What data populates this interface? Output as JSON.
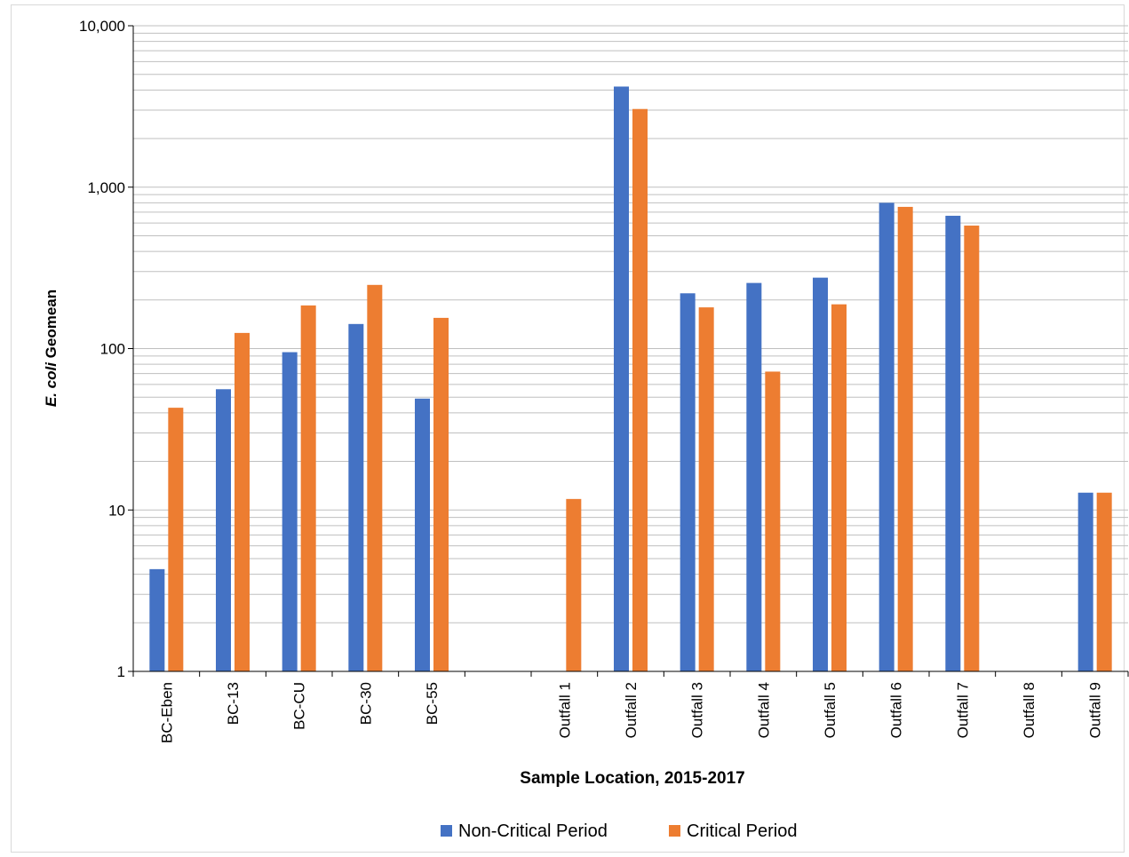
{
  "chart_data": {
    "type": "bar",
    "title": "",
    "xlabel": "Sample Location, 2015-2017",
    "ylabel_italic": "E. coli",
    "ylabel_rest": " Geomean",
    "yscale": "log",
    "ylim": [
      1,
      10000
    ],
    "y_ticks": [
      {
        "value": 1,
        "label": "1"
      },
      {
        "value": 10,
        "label": "10"
      },
      {
        "value": 100,
        "label": "100"
      },
      {
        "value": 1000,
        "label": "1,000"
      },
      {
        "value": 10000,
        "label": "10,000"
      }
    ],
    "grid": true,
    "legend_position": "bottom",
    "categories": [
      "BC-Eben",
      "BC-13",
      "BC-CU",
      "BC-30",
      "BC-55",
      "",
      "Outfall 1",
      "Outfall 2",
      "Outfall 3",
      "Outfall 4",
      "Outfall 5",
      "Outfall 6",
      "Outfall 7",
      "Outfall 8",
      "Outfall 9"
    ],
    "series": [
      {
        "name": "Non-Critical Period",
        "color": "#4472C4",
        "values": [
          4.3,
          56,
          95,
          142,
          49,
          null,
          null,
          4200,
          220,
          255,
          275,
          800,
          665,
          null,
          12.8
        ]
      },
      {
        "name": "Critical Period",
        "color": "#ED7D31",
        "values": [
          43,
          125,
          185,
          248,
          155,
          null,
          11.7,
          3050,
          180,
          72,
          188,
          755,
          578,
          null,
          12.8
        ]
      }
    ]
  }
}
